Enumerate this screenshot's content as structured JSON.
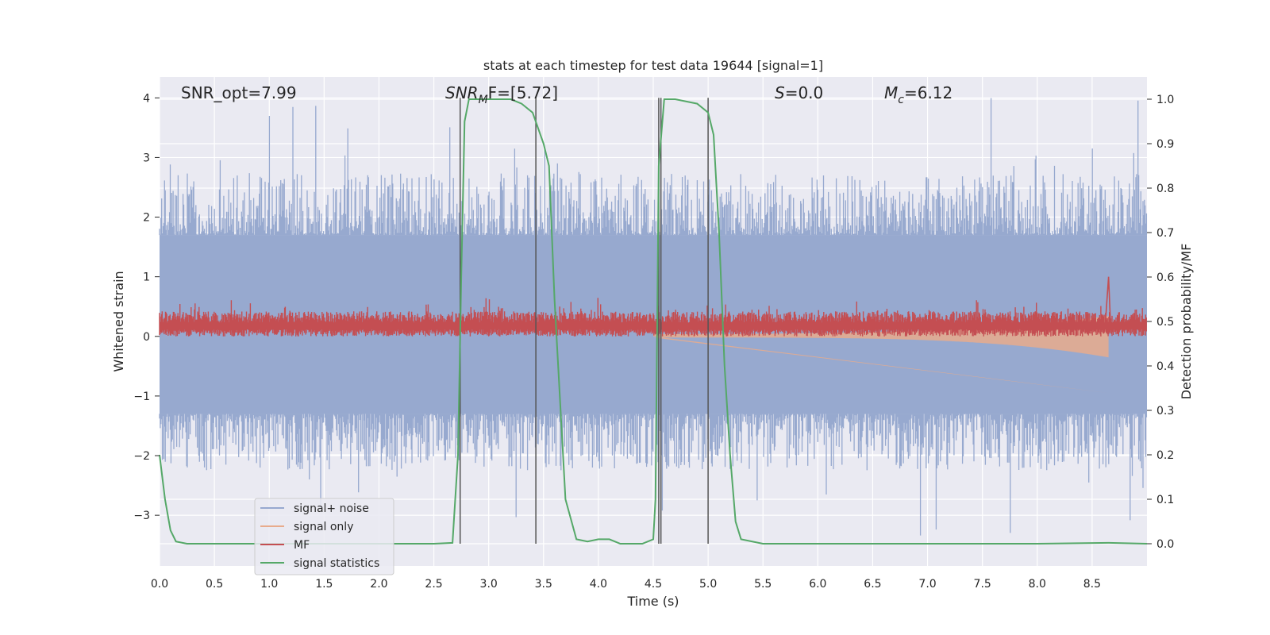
{
  "chart_data": {
    "type": "line",
    "title": "stats at each timestep for test data 19644 [signal=1]",
    "xlabel": "Time (s)",
    "ylabel": "Whitened strain",
    "y2label": "Detection probability/MF",
    "xlim": [
      0.0,
      9.0
    ],
    "ylim": [
      -3.85,
      4.35
    ],
    "y2lim": [
      -0.05,
      1.05
    ],
    "x_ticks": [
      "0.0",
      "0.5",
      "1.0",
      "1.5",
      "2.0",
      "2.5",
      "3.0",
      "3.5",
      "4.0",
      "4.5",
      "5.0",
      "5.5",
      "6.0",
      "6.5",
      "7.0",
      "7.5",
      "8.0",
      "8.5"
    ],
    "y_ticks": [
      "−3",
      "−2",
      "−1",
      "0",
      "1",
      "2",
      "3",
      "4"
    ],
    "y2_ticks": [
      "0.0",
      "0.1",
      "0.2",
      "0.3",
      "0.4",
      "0.5",
      "0.6",
      "0.7",
      "0.8",
      "0.9",
      "1.0"
    ],
    "grid": true,
    "legend_position": "lower-left",
    "annotations": {
      "snr_opt": "SNR_opt=7.99",
      "snr_mf": "SNR",
      "snr_mf_sub": "M",
      "snr_mf_val": "F=[5.72]",
      "s_label": "S",
      "s_val": "=0.0",
      "mc_label": "M",
      "mc_sub": "c",
      "mc_val": "=6.12"
    },
    "series": [
      {
        "name": "signal+ noise",
        "color": "#97a9cf",
        "kind": "noise_band",
        "band": [
          -1.3,
          1.7
        ],
        "spike_range": [
          -3.4,
          4.0
        ]
      },
      {
        "name": "signal only",
        "color": "#e8ab8c",
        "kind": "chirp",
        "start": 4.5,
        "end": 8.65,
        "min_at_end": -0.95
      },
      {
        "name": "MF",
        "color": "#c44e52",
        "kind": "mf_band",
        "band": [
          0.0,
          0.42
        ],
        "peak": {
          "x": 8.65,
          "y": 1.0
        }
      },
      {
        "name": "signal statistics",
        "color": "#55a868",
        "axis": "y2",
        "x": [
          0.0,
          0.05,
          0.1,
          0.15,
          0.25,
          0.5,
          1.0,
          1.5,
          2.0,
          2.5,
          2.67,
          2.72,
          2.75,
          2.78,
          2.82,
          3.0,
          3.2,
          3.3,
          3.4,
          3.5,
          3.55,
          3.6,
          3.7,
          3.8,
          3.9,
          4.0,
          4.1,
          4.2,
          4.3,
          4.4,
          4.5,
          4.52,
          4.55,
          4.6,
          4.65,
          4.7,
          4.9,
          5.0,
          5.05,
          5.1,
          5.15,
          5.2,
          5.25,
          5.3,
          5.5,
          6.0,
          7.0,
          8.0,
          8.65,
          9.0
        ],
        "y": [
          0.2,
          0.1,
          0.03,
          0.005,
          0.0,
          0.0,
          0.0,
          0.0,
          0.0,
          0.0,
          0.002,
          0.2,
          0.6,
          0.95,
          1.0,
          1.0,
          1.0,
          0.99,
          0.97,
          0.9,
          0.85,
          0.55,
          0.1,
          0.01,
          0.005,
          0.01,
          0.01,
          0.0,
          0.0,
          0.0,
          0.01,
          0.1,
          0.85,
          1.0,
          1.0,
          1.0,
          0.99,
          0.97,
          0.92,
          0.7,
          0.4,
          0.2,
          0.05,
          0.01,
          0.0,
          0.0,
          0.0,
          0.0,
          0.002,
          0.0
        ]
      }
    ],
    "vlines": [
      2.74,
      3.43,
      4.55,
      4.57,
      5.0
    ],
    "legend": [
      "signal+ noise",
      "signal only",
      "MF",
      "signal statistics"
    ]
  }
}
